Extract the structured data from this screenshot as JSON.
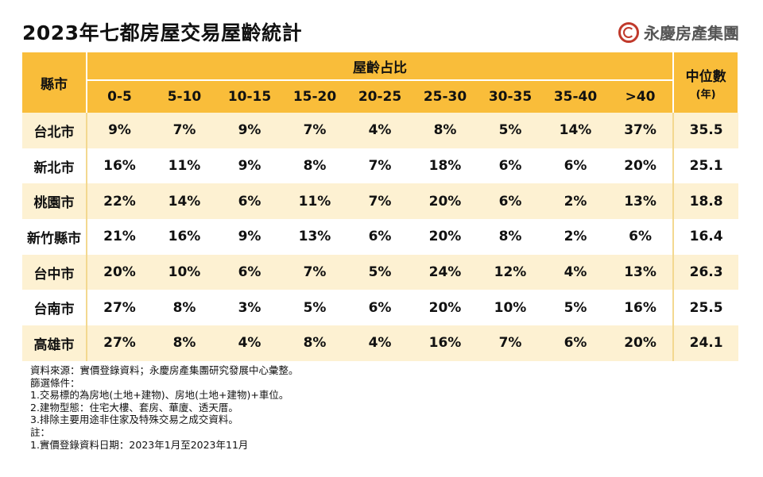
{
  "header": {
    "title": "2023年七都房屋交易屋齡統計",
    "brand": "永慶房產集團"
  },
  "table": {
    "col_county": "縣市",
    "col_group": "屋齡占比",
    "col_median": "中位數",
    "col_median_unit": "(年)",
    "age_buckets": [
      "0-5",
      "5-10",
      "10-15",
      "15-20",
      "20-25",
      "25-30",
      "30-35",
      "35-40",
      ">40"
    ],
    "rows": [
      {
        "city": "台北市",
        "values": [
          "9%",
          "7%",
          "9%",
          "7%",
          "4%",
          "8%",
          "5%",
          "14%",
          "37%"
        ],
        "median": "35.5"
      },
      {
        "city": "新北市",
        "values": [
          "16%",
          "11%",
          "9%",
          "8%",
          "7%",
          "18%",
          "6%",
          "6%",
          "20%"
        ],
        "median": "25.1"
      },
      {
        "city": "桃園市",
        "values": [
          "22%",
          "14%",
          "6%",
          "11%",
          "7%",
          "20%",
          "6%",
          "2%",
          "13%"
        ],
        "median": "18.8"
      },
      {
        "city": "新竹縣市",
        "values": [
          "21%",
          "16%",
          "9%",
          "13%",
          "6%",
          "20%",
          "8%",
          "2%",
          "6%"
        ],
        "median": "16.4"
      },
      {
        "city": "台中市",
        "values": [
          "20%",
          "10%",
          "6%",
          "7%",
          "5%",
          "24%",
          "12%",
          "4%",
          "13%"
        ],
        "median": "26.3"
      },
      {
        "city": "台南市",
        "values": [
          "27%",
          "8%",
          "3%",
          "5%",
          "6%",
          "20%",
          "10%",
          "5%",
          "16%"
        ],
        "median": "25.5"
      },
      {
        "city": "高雄市",
        "values": [
          "27%",
          "8%",
          "4%",
          "8%",
          "4%",
          "16%",
          "7%",
          "6%",
          "20%"
        ],
        "median": "24.1"
      }
    ]
  },
  "notes": [
    "資料來源：實價登錄資料；永慶房產集團研究發展中心彙整。",
    "篩選條件：",
    "1.交易標的為房地(土地+建物)、房地(土地+建物)+車位。",
    "2.建物型態：住宅大樓、套房、華廈、透天厝。",
    "3.排除主要用途非住家及特殊交易之成交資料。",
    "註：",
    "1.實價登錄資料日期：2023年1月至2023年11月"
  ]
}
